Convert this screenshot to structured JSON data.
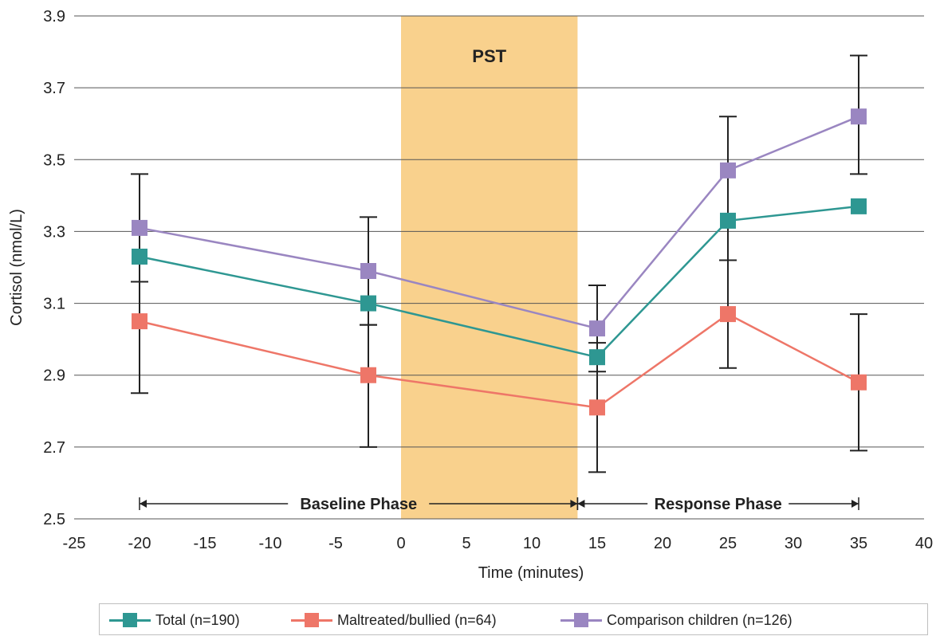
{
  "chart_data": {
    "type": "line",
    "xlabel": "Time (minutes)",
    "ylabel": "Cortisol (nmol/L)",
    "xlim": [
      -25,
      40
    ],
    "ylim": [
      2.5,
      3.9
    ],
    "x_ticks": [
      "-25",
      "-20",
      "-15",
      "-10",
      "-5",
      "0",
      "5",
      "10",
      "15",
      "20",
      "25",
      "30",
      "35",
      "40"
    ],
    "y_ticks": [
      "2.5",
      "2.7",
      "2.9",
      "3.1",
      "3.3",
      "3.5",
      "3.7",
      "3.9"
    ],
    "grid": "horizontal",
    "shaded_region": {
      "label": "PST",
      "x": [
        0,
        13.5
      ],
      "color": "#F9D18D"
    },
    "phases": [
      {
        "label": "Baseline Phase",
        "x": [
          -20,
          13.5
        ]
      },
      {
        "label": "Response Phase",
        "x": [
          13.5,
          35
        ]
      }
    ],
    "legend_position": "bottom",
    "series": [
      {
        "name": "Total (n=190)",
        "color": "#2E9792",
        "x": [
          -20,
          -2.5,
          15,
          25,
          35
        ],
        "y": [
          3.23,
          3.1,
          2.95,
          3.33,
          3.37
        ]
      },
      {
        "name": "Maltreated/bullied (n=64)",
        "color": "#EE7668",
        "x": [
          -20,
          -2.5,
          15,
          25,
          35
        ],
        "y": [
          3.05,
          2.9,
          2.81,
          3.07,
          2.88
        ],
        "error_low": [
          2.85,
          2.7,
          2.63,
          2.92,
          2.69
        ],
        "error_high": [
          3.16,
          3.04,
          2.99,
          3.22,
          3.07
        ]
      },
      {
        "name": "Comparison children (n=126)",
        "color": "#9A86C1",
        "x": [
          -20,
          -2.5,
          15,
          25,
          35
        ],
        "y": [
          3.31,
          3.19,
          3.03,
          3.47,
          3.62
        ],
        "error_low": [
          3.16,
          3.04,
          2.91,
          3.22,
          3.46
        ],
        "error_high": [
          3.46,
          3.34,
          3.15,
          3.62,
          3.79
        ]
      }
    ]
  }
}
